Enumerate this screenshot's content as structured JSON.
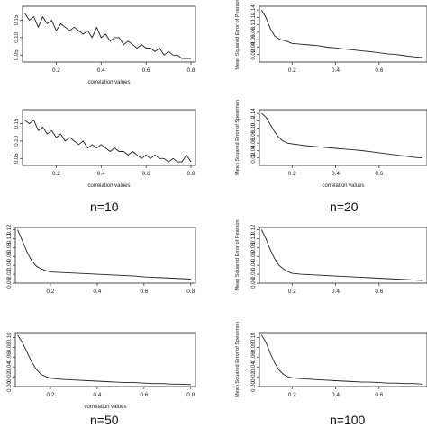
{
  "groups": [
    {
      "label": "n=10"
    },
    {
      "label": "n=20"
    },
    {
      "label": "n=50"
    },
    {
      "label": "n=100"
    }
  ],
  "chart_data": [
    {
      "type": "line",
      "xlabel": "correlation values",
      "ylabel": "",
      "xlim": [
        0.05,
        0.82
      ],
      "ylim": [
        0.03,
        0.19
      ],
      "xticks": [
        "0.2",
        "0.4",
        "0.6",
        "0.8"
      ],
      "yticks": [
        "0.05",
        "0.10",
        "0.15"
      ],
      "x": [
        0.06,
        0.08,
        0.1,
        0.12,
        0.14,
        0.16,
        0.18,
        0.2,
        0.22,
        0.24,
        0.26,
        0.28,
        0.3,
        0.32,
        0.34,
        0.36,
        0.38,
        0.4,
        0.42,
        0.44,
        0.46,
        0.48,
        0.5,
        0.52,
        0.54,
        0.56,
        0.58,
        0.6,
        0.62,
        0.64,
        0.66,
        0.68,
        0.7,
        0.72,
        0.74,
        0.76,
        0.78,
        0.8
      ],
      "y": [
        0.17,
        0.15,
        0.16,
        0.13,
        0.16,
        0.14,
        0.15,
        0.12,
        0.14,
        0.13,
        0.12,
        0.13,
        0.12,
        0.11,
        0.12,
        0.1,
        0.13,
        0.1,
        0.11,
        0.09,
        0.1,
        0.1,
        0.08,
        0.09,
        0.08,
        0.07,
        0.08,
        0.07,
        0.07,
        0.06,
        0.07,
        0.05,
        0.06,
        0.05,
        0.05,
        0.04,
        0.04,
        0.04
      ]
    },
    {
      "type": "line",
      "xlabel": "",
      "ylabel": "Mean Squared Error of Pearson",
      "xlim": [
        0.05,
        0.82
      ],
      "ylim": [
        0.0,
        0.15
      ],
      "xticks": [
        "0.2",
        "0.4",
        "0.6"
      ],
      "yticks": [
        "0.02",
        "0.04",
        "0.06",
        "0.08",
        "0.10",
        "0.12",
        "0.14"
      ],
      "x": [
        0.06,
        0.08,
        0.1,
        0.12,
        0.14,
        0.16,
        0.18,
        0.2,
        0.24,
        0.28,
        0.32,
        0.36,
        0.4,
        0.44,
        0.48,
        0.52,
        0.56,
        0.6,
        0.64,
        0.68,
        0.72,
        0.76,
        0.8
      ],
      "y": [
        0.14,
        0.12,
        0.09,
        0.07,
        0.062,
        0.058,
        0.055,
        0.05,
        0.048,
        0.046,
        0.044,
        0.04,
        0.038,
        0.035,
        0.033,
        0.03,
        0.028,
        0.025,
        0.022,
        0.02,
        0.017,
        0.014,
        0.012
      ]
    },
    {
      "type": "line",
      "xlabel": "correlation values",
      "ylabel": "",
      "xlim": [
        0.05,
        0.82
      ],
      "ylim": [
        0.03,
        0.19
      ],
      "xticks": [
        "0.2",
        "0.4",
        "0.6",
        "0.8"
      ],
      "yticks": [
        "0.05",
        "0.10",
        "0.15"
      ],
      "x": [
        0.06,
        0.08,
        0.1,
        0.12,
        0.14,
        0.16,
        0.18,
        0.2,
        0.22,
        0.24,
        0.26,
        0.28,
        0.3,
        0.32,
        0.34,
        0.36,
        0.38,
        0.4,
        0.42,
        0.44,
        0.46,
        0.48,
        0.5,
        0.52,
        0.54,
        0.56,
        0.58,
        0.6,
        0.62,
        0.64,
        0.66,
        0.68,
        0.7,
        0.72,
        0.74,
        0.76,
        0.78,
        0.8
      ],
      "y": [
        0.16,
        0.15,
        0.16,
        0.13,
        0.14,
        0.12,
        0.13,
        0.11,
        0.12,
        0.1,
        0.11,
        0.1,
        0.09,
        0.1,
        0.08,
        0.09,
        0.08,
        0.09,
        0.08,
        0.07,
        0.08,
        0.07,
        0.07,
        0.06,
        0.07,
        0.06,
        0.05,
        0.06,
        0.05,
        0.06,
        0.05,
        0.05,
        0.04,
        0.05,
        0.04,
        0.04,
        0.06,
        0.04
      ]
    },
    {
      "type": "line",
      "xlabel": "correlation values",
      "ylabel": "Mean Squared Error of Spearman",
      "xlim": [
        0.05,
        0.82
      ],
      "ylim": [
        0.0,
        0.15
      ],
      "xticks": [
        "0.2",
        "0.4",
        "0.6"
      ],
      "yticks": [
        "0.02",
        "0.04",
        "0.06",
        "0.08",
        "0.10",
        "0.12",
        "0.14"
      ],
      "x": [
        0.06,
        0.08,
        0.1,
        0.12,
        0.14,
        0.16,
        0.18,
        0.2,
        0.24,
        0.28,
        0.32,
        0.36,
        0.4,
        0.44,
        0.48,
        0.52,
        0.56,
        0.6,
        0.64,
        0.68,
        0.72,
        0.76,
        0.8
      ],
      "y": [
        0.14,
        0.13,
        0.11,
        0.09,
        0.075,
        0.065,
        0.06,
        0.058,
        0.055,
        0.052,
        0.05,
        0.048,
        0.046,
        0.044,
        0.042,
        0.04,
        0.037,
        0.034,
        0.031,
        0.028,
        0.025,
        0.022,
        0.02
      ]
    },
    {
      "type": "line",
      "xlabel": "",
      "ylabel": "",
      "xlim": [
        0.05,
        0.82
      ],
      "ylim": [
        0.0,
        0.125
      ],
      "xticks": [
        "0.2",
        "0.4",
        "0.6",
        "0.8"
      ],
      "yticks": [
        "0.00",
        "0.02",
        "0.04",
        "0.06",
        "0.08",
        "0.10",
        "0.12"
      ],
      "x": [
        0.06,
        0.08,
        0.1,
        0.12,
        0.14,
        0.16,
        0.18,
        0.2,
        0.24,
        0.28,
        0.32,
        0.36,
        0.4,
        0.44,
        0.48,
        0.52,
        0.56,
        0.6,
        0.64,
        0.68,
        0.72,
        0.76,
        0.8
      ],
      "y": [
        0.12,
        0.095,
        0.07,
        0.05,
        0.038,
        0.032,
        0.028,
        0.025,
        0.024,
        0.023,
        0.022,
        0.021,
        0.02,
        0.019,
        0.018,
        0.017,
        0.016,
        0.014,
        0.013,
        0.012,
        0.011,
        0.01,
        0.009
      ]
    },
    {
      "type": "line",
      "xlabel": "",
      "ylabel": "Mean Squared Error of Pearson",
      "xlim": [
        0.05,
        0.82
      ],
      "ylim": [
        0.0,
        0.125
      ],
      "xticks": [
        "0.2",
        "0.4",
        "0.6"
      ],
      "yticks": [
        "0.00",
        "0.02",
        "0.04",
        "0.06",
        "0.08",
        "0.10",
        "0.12"
      ],
      "x": [
        0.06,
        0.08,
        0.1,
        0.12,
        0.14,
        0.16,
        0.18,
        0.2,
        0.24,
        0.28,
        0.32,
        0.36,
        0.4,
        0.44,
        0.48,
        0.52,
        0.56,
        0.6,
        0.64,
        0.68,
        0.72,
        0.76,
        0.8
      ],
      "y": [
        0.12,
        0.1,
        0.075,
        0.055,
        0.04,
        0.032,
        0.026,
        0.022,
        0.02,
        0.019,
        0.018,
        0.017,
        0.016,
        0.015,
        0.014,
        0.013,
        0.012,
        0.011,
        0.01,
        0.009,
        0.008,
        0.007,
        0.006
      ]
    },
    {
      "type": "line",
      "xlabel": "correlation values",
      "ylabel": "",
      "xlim": [
        0.05,
        0.82
      ],
      "ylim": [
        0.0,
        0.11
      ],
      "xticks": [
        "0.2",
        "0.4",
        "0.6",
        "0.8"
      ],
      "yticks": [
        "0.00",
        "0.02",
        "0.04",
        "0.06",
        "0.08",
        "0.10"
      ],
      "x": [
        0.06,
        0.08,
        0.1,
        0.12,
        0.14,
        0.16,
        0.18,
        0.2,
        0.24,
        0.28,
        0.32,
        0.36,
        0.4,
        0.44,
        0.48,
        0.52,
        0.56,
        0.6,
        0.64,
        0.68,
        0.72,
        0.76,
        0.8
      ],
      "y": [
        0.105,
        0.09,
        0.07,
        0.05,
        0.035,
        0.025,
        0.02,
        0.017,
        0.015,
        0.014,
        0.013,
        0.012,
        0.011,
        0.01,
        0.009,
        0.008,
        0.008,
        0.007,
        0.006,
        0.006,
        0.005,
        0.005,
        0.004
      ]
    },
    {
      "type": "line",
      "xlabel": "",
      "ylabel": "Mean Squared Error of Spearman",
      "xlim": [
        0.05,
        0.82
      ],
      "ylim": [
        0.0,
        0.11
      ],
      "xticks": [
        "0.2",
        "0.4",
        "0.6"
      ],
      "yticks": [
        "0.00",
        "0.02",
        "0.04",
        "0.06",
        "0.08",
        "0.10"
      ],
      "x": [
        0.06,
        0.08,
        0.1,
        0.12,
        0.14,
        0.16,
        0.18,
        0.2,
        0.24,
        0.28,
        0.32,
        0.36,
        0.4,
        0.44,
        0.48,
        0.52,
        0.56,
        0.6,
        0.64,
        0.68,
        0.72,
        0.76,
        0.8
      ],
      "y": [
        0.105,
        0.09,
        0.068,
        0.048,
        0.034,
        0.025,
        0.02,
        0.018,
        0.016,
        0.015,
        0.014,
        0.013,
        0.012,
        0.011,
        0.01,
        0.009,
        0.009,
        0.008,
        0.007,
        0.007,
        0.006,
        0.006,
        0.005
      ]
    }
  ]
}
